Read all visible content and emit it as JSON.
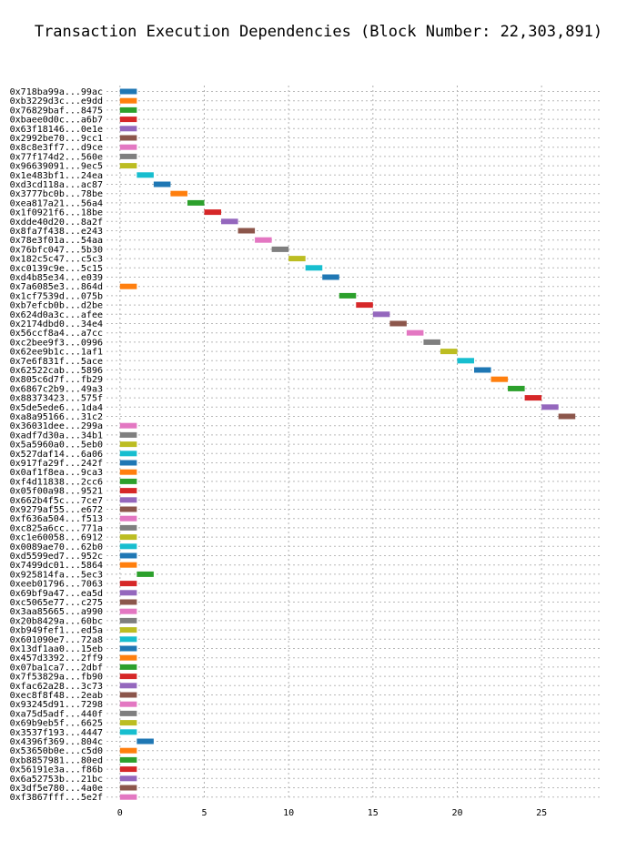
{
  "chart_data": {
    "type": "gantt",
    "title": "Transaction Execution Dependencies (Block Number: 22,303,891)",
    "xlabel": "",
    "ylabel": "",
    "xlim": [
      -0.8,
      28.5
    ],
    "xticks": [
      0,
      5,
      10,
      15,
      20,
      25
    ],
    "grid": true,
    "bar_duration": 1,
    "palette": [
      "#1f77b4",
      "#ff7f0e",
      "#2ca02c",
      "#d62728",
      "#9467bd",
      "#8c564b",
      "#e377c2",
      "#7f7f7f",
      "#bcbd22",
      "#17becf"
    ],
    "transactions": [
      {
        "label": "0x718ba99a...99ac",
        "start": 0
      },
      {
        "label": "0xb3229d3c...e9dd",
        "start": 0
      },
      {
        "label": "0x76829baf...8475",
        "start": 0
      },
      {
        "label": "0xbaee0d0c...a6b7",
        "start": 0
      },
      {
        "label": "0x63f18146...0e1e",
        "start": 0
      },
      {
        "label": "0x2992be70...9cc1",
        "start": 0
      },
      {
        "label": "0x8c8e3ff7...d9ce",
        "start": 0
      },
      {
        "label": "0x77f174d2...560e",
        "start": 0
      },
      {
        "label": "0x96639091...9ec5",
        "start": 0
      },
      {
        "label": "0x1e483bf1...24ea",
        "start": 1
      },
      {
        "label": "0xd3cd118a...ac87",
        "start": 2
      },
      {
        "label": "0x3777bc0b...78be",
        "start": 3
      },
      {
        "label": "0xea817a21...56a4",
        "start": 4
      },
      {
        "label": "0x1f0921f6...18be",
        "start": 5
      },
      {
        "label": "0xdde40d20...8a2f",
        "start": 6
      },
      {
        "label": "0x8fa7f438...e243",
        "start": 7
      },
      {
        "label": "0x78e3f01a...54aa",
        "start": 8
      },
      {
        "label": "0x76bfc047...5b30",
        "start": 9
      },
      {
        "label": "0x182c5c47...c5c3",
        "start": 10
      },
      {
        "label": "0xc0139c9e...5c15",
        "start": 11
      },
      {
        "label": "0xd4b85e34...e039",
        "start": 12
      },
      {
        "label": "0x7a6085e3...864d",
        "start": 0
      },
      {
        "label": "0x1cf7539d...075b",
        "start": 13
      },
      {
        "label": "0xb7efcb0b...d2be",
        "start": 14
      },
      {
        "label": "0x624d0a3c...afee",
        "start": 15
      },
      {
        "label": "0x2174dbd0...34e4",
        "start": 16
      },
      {
        "label": "0x56ccf8a4...a7cc",
        "start": 17
      },
      {
        "label": "0xc2bee9f3...0996",
        "start": 18
      },
      {
        "label": "0x62ee9b1c...1af1",
        "start": 19
      },
      {
        "label": "0x7e6f831f...5ace",
        "start": 20
      },
      {
        "label": "0x62522cab...5896",
        "start": 21
      },
      {
        "label": "0x805c6d7f...fb29",
        "start": 22
      },
      {
        "label": "0x6867c2b9...49a3",
        "start": 23
      },
      {
        "label": "0x88373423...575f",
        "start": 24
      },
      {
        "label": "0x5de5ede6...1da4",
        "start": 25
      },
      {
        "label": "0xa8a95166...31c2",
        "start": 26
      },
      {
        "label": "0x36031dee...299a",
        "start": 0
      },
      {
        "label": "0xadf7d30a...34b1",
        "start": 0
      },
      {
        "label": "0x5a5960a0...5eb0",
        "start": 0
      },
      {
        "label": "0x527daf14...6a06",
        "start": 0
      },
      {
        "label": "0x917fa29f...242f",
        "start": 0
      },
      {
        "label": "0x0af1f8ea...9ca3",
        "start": 0
      },
      {
        "label": "0xf4d11838...2cc6",
        "start": 0
      },
      {
        "label": "0x05f00a98...9521",
        "start": 0
      },
      {
        "label": "0x662b4f5c...7ce7",
        "start": 0
      },
      {
        "label": "0x9279af55...e672",
        "start": 0
      },
      {
        "label": "0xf636a504...f513",
        "start": 0
      },
      {
        "label": "0xc825a6cc...771a",
        "start": 0
      },
      {
        "label": "0xc1e60058...6912",
        "start": 0
      },
      {
        "label": "0x0089ae70...62b0",
        "start": 0
      },
      {
        "label": "0xd5599ed7...952c",
        "start": 0
      },
      {
        "label": "0x7499dc01...5864",
        "start": 0
      },
      {
        "label": "0x925814fa...5ec3",
        "start": 1
      },
      {
        "label": "0xeeb01796...7063",
        "start": 0
      },
      {
        "label": "0x69bf9a47...ea5d",
        "start": 0
      },
      {
        "label": "0xc5065e77...c275",
        "start": 0
      },
      {
        "label": "0x3aa85665...a990",
        "start": 0
      },
      {
        "label": "0x20b8429a...60bc",
        "start": 0
      },
      {
        "label": "0xb949fef1...ed5a",
        "start": 0
      },
      {
        "label": "0x601090e7...72a8",
        "start": 0
      },
      {
        "label": "0x13df1aa0...15eb",
        "start": 0
      },
      {
        "label": "0x457d3392...2ff9",
        "start": 0
      },
      {
        "label": "0x07ba1ca7...2dbf",
        "start": 0
      },
      {
        "label": "0x7f53829a...fb90",
        "start": 0
      },
      {
        "label": "0xfac62a28...3c73",
        "start": 0
      },
      {
        "label": "0xec8f8f48...2eab",
        "start": 0
      },
      {
        "label": "0x93245d91...7298",
        "start": 0
      },
      {
        "label": "0xa75d5adf...440f",
        "start": 0
      },
      {
        "label": "0x69b9eb5f...6625",
        "start": 0
      },
      {
        "label": "0x3537f193...4447",
        "start": 0
      },
      {
        "label": "0x4396f369...804c",
        "start": 1
      },
      {
        "label": "0x53650b0e...c5d0",
        "start": 0
      },
      {
        "label": "0xb8857981...80ed",
        "start": 0
      },
      {
        "label": "0x56191e3a...f86b",
        "start": 0
      },
      {
        "label": "0x6a52753b...21bc",
        "start": 0
      },
      {
        "label": "0x3df5e780...4a0e",
        "start": 0
      },
      {
        "label": "0xf3867fff...5e2f",
        "start": 0
      }
    ]
  }
}
